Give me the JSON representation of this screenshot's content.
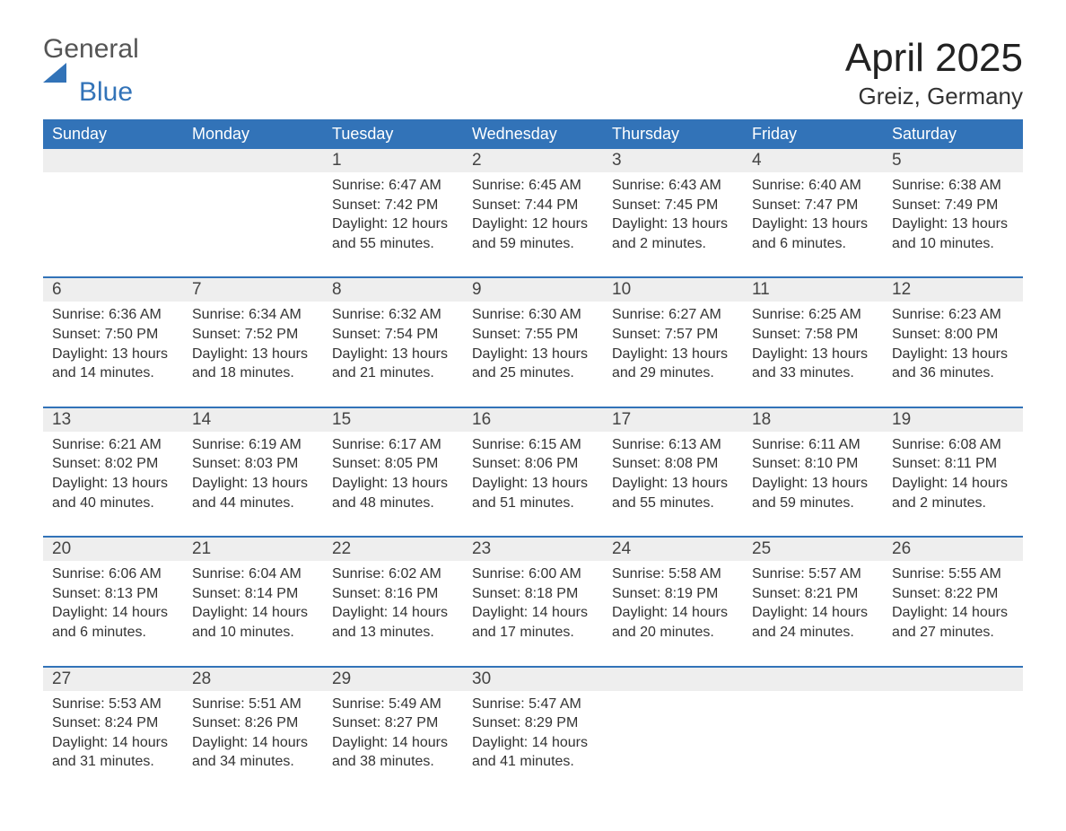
{
  "brand": {
    "general": "General",
    "blue": "Blue"
  },
  "title": "April 2025",
  "location": "Greiz, Germany",
  "colors": {
    "header_bg": "#3273b8",
    "header_fg": "#ffffff",
    "daynum_bg": "#eeeeee",
    "rule": "#3273b8",
    "text": "#333333",
    "page_bg": "#ffffff"
  },
  "columns": [
    "Sunday",
    "Monday",
    "Tuesday",
    "Wednesday",
    "Thursday",
    "Friday",
    "Saturday"
  ],
  "weeks": [
    {
      "nums": [
        "",
        "",
        "1",
        "2",
        "3",
        "4",
        "5"
      ],
      "cells": [
        null,
        null,
        {
          "sunrise": "Sunrise: 6:47 AM",
          "sunset": "Sunset: 7:42 PM",
          "daylight": "Daylight: 12 hours and 55 minutes."
        },
        {
          "sunrise": "Sunrise: 6:45 AM",
          "sunset": "Sunset: 7:44 PM",
          "daylight": "Daylight: 12 hours and 59 minutes."
        },
        {
          "sunrise": "Sunrise: 6:43 AM",
          "sunset": "Sunset: 7:45 PM",
          "daylight": "Daylight: 13 hours and 2 minutes."
        },
        {
          "sunrise": "Sunrise: 6:40 AM",
          "sunset": "Sunset: 7:47 PM",
          "daylight": "Daylight: 13 hours and 6 minutes."
        },
        {
          "sunrise": "Sunrise: 6:38 AM",
          "sunset": "Sunset: 7:49 PM",
          "daylight": "Daylight: 13 hours and 10 minutes."
        }
      ]
    },
    {
      "nums": [
        "6",
        "7",
        "8",
        "9",
        "10",
        "11",
        "12"
      ],
      "cells": [
        {
          "sunrise": "Sunrise: 6:36 AM",
          "sunset": "Sunset: 7:50 PM",
          "daylight": "Daylight: 13 hours and 14 minutes."
        },
        {
          "sunrise": "Sunrise: 6:34 AM",
          "sunset": "Sunset: 7:52 PM",
          "daylight": "Daylight: 13 hours and 18 minutes."
        },
        {
          "sunrise": "Sunrise: 6:32 AM",
          "sunset": "Sunset: 7:54 PM",
          "daylight": "Daylight: 13 hours and 21 minutes."
        },
        {
          "sunrise": "Sunrise: 6:30 AM",
          "sunset": "Sunset: 7:55 PM",
          "daylight": "Daylight: 13 hours and 25 minutes."
        },
        {
          "sunrise": "Sunrise: 6:27 AM",
          "sunset": "Sunset: 7:57 PM",
          "daylight": "Daylight: 13 hours and 29 minutes."
        },
        {
          "sunrise": "Sunrise: 6:25 AM",
          "sunset": "Sunset: 7:58 PM",
          "daylight": "Daylight: 13 hours and 33 minutes."
        },
        {
          "sunrise": "Sunrise: 6:23 AM",
          "sunset": "Sunset: 8:00 PM",
          "daylight": "Daylight: 13 hours and 36 minutes."
        }
      ]
    },
    {
      "nums": [
        "13",
        "14",
        "15",
        "16",
        "17",
        "18",
        "19"
      ],
      "cells": [
        {
          "sunrise": "Sunrise: 6:21 AM",
          "sunset": "Sunset: 8:02 PM",
          "daylight": "Daylight: 13 hours and 40 minutes."
        },
        {
          "sunrise": "Sunrise: 6:19 AM",
          "sunset": "Sunset: 8:03 PM",
          "daylight": "Daylight: 13 hours and 44 minutes."
        },
        {
          "sunrise": "Sunrise: 6:17 AM",
          "sunset": "Sunset: 8:05 PM",
          "daylight": "Daylight: 13 hours and 48 minutes."
        },
        {
          "sunrise": "Sunrise: 6:15 AM",
          "sunset": "Sunset: 8:06 PM",
          "daylight": "Daylight: 13 hours and 51 minutes."
        },
        {
          "sunrise": "Sunrise: 6:13 AM",
          "sunset": "Sunset: 8:08 PM",
          "daylight": "Daylight: 13 hours and 55 minutes."
        },
        {
          "sunrise": "Sunrise: 6:11 AM",
          "sunset": "Sunset: 8:10 PM",
          "daylight": "Daylight: 13 hours and 59 minutes."
        },
        {
          "sunrise": "Sunrise: 6:08 AM",
          "sunset": "Sunset: 8:11 PM",
          "daylight": "Daylight: 14 hours and 2 minutes."
        }
      ]
    },
    {
      "nums": [
        "20",
        "21",
        "22",
        "23",
        "24",
        "25",
        "26"
      ],
      "cells": [
        {
          "sunrise": "Sunrise: 6:06 AM",
          "sunset": "Sunset: 8:13 PM",
          "daylight": "Daylight: 14 hours and 6 minutes."
        },
        {
          "sunrise": "Sunrise: 6:04 AM",
          "sunset": "Sunset: 8:14 PM",
          "daylight": "Daylight: 14 hours and 10 minutes."
        },
        {
          "sunrise": "Sunrise: 6:02 AM",
          "sunset": "Sunset: 8:16 PM",
          "daylight": "Daylight: 14 hours and 13 minutes."
        },
        {
          "sunrise": "Sunrise: 6:00 AM",
          "sunset": "Sunset: 8:18 PM",
          "daylight": "Daylight: 14 hours and 17 minutes."
        },
        {
          "sunrise": "Sunrise: 5:58 AM",
          "sunset": "Sunset: 8:19 PM",
          "daylight": "Daylight: 14 hours and 20 minutes."
        },
        {
          "sunrise": "Sunrise: 5:57 AM",
          "sunset": "Sunset: 8:21 PM",
          "daylight": "Daylight: 14 hours and 24 minutes."
        },
        {
          "sunrise": "Sunrise: 5:55 AM",
          "sunset": "Sunset: 8:22 PM",
          "daylight": "Daylight: 14 hours and 27 minutes."
        }
      ]
    },
    {
      "nums": [
        "27",
        "28",
        "29",
        "30",
        "",
        "",
        ""
      ],
      "cells": [
        {
          "sunrise": "Sunrise: 5:53 AM",
          "sunset": "Sunset: 8:24 PM",
          "daylight": "Daylight: 14 hours and 31 minutes."
        },
        {
          "sunrise": "Sunrise: 5:51 AM",
          "sunset": "Sunset: 8:26 PM",
          "daylight": "Daylight: 14 hours and 34 minutes."
        },
        {
          "sunrise": "Sunrise: 5:49 AM",
          "sunset": "Sunset: 8:27 PM",
          "daylight": "Daylight: 14 hours and 38 minutes."
        },
        {
          "sunrise": "Sunrise: 5:47 AM",
          "sunset": "Sunset: 8:29 PM",
          "daylight": "Daylight: 14 hours and 41 minutes."
        },
        null,
        null,
        null
      ]
    }
  ]
}
